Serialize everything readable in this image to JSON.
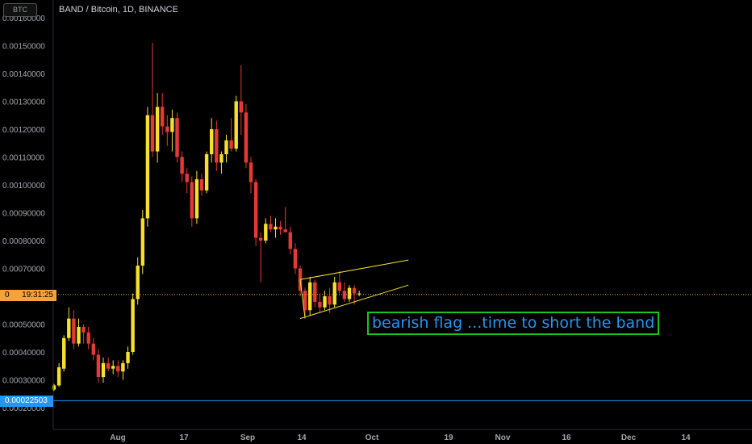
{
  "header": {
    "symbol_title": "BAND / Bitcoin, 1D, BINANCE",
    "currency_badge": "BTC"
  },
  "price_tags": {
    "countdown": "19:31:25",
    "current_price_label": "0",
    "horizontal_line_value": "0.00022503"
  },
  "annotation": {
    "text": "bearish flag ...time to short the band"
  },
  "colors": {
    "bull": "#f7e02d",
    "bear": "#e53935",
    "flag_lines": "#f7e02d",
    "horizontal_line": "#2196f3",
    "price_line": "#f7a23a",
    "annotation_border": "#1cc41c",
    "annotation_text": "#2196f3",
    "background": "#000000",
    "axis_text": "#a3a6af"
  },
  "chart_data": {
    "type": "candlestick",
    "ylim": [
      0.00014,
      0.00166
    ],
    "y_ticks": [
      "0.00020000",
      "0.00030000",
      "0.00040000",
      "0.00050000",
      "0.00060000",
      "0.00070000",
      "0.00080000",
      "0.00090000",
      "0.00100000",
      "0.00110000",
      "0.00120000",
      "0.00130000",
      "0.00140000",
      "0.00150000",
      "0.00160000"
    ],
    "x_ticks": [
      "Aug",
      "17",
      "Sep",
      "14",
      "Oct",
      "19",
      "Nov",
      "16",
      "Dec",
      "14"
    ],
    "candles": [
      [
        0.000265,
        0.000285,
        0.00026,
        0.00028
      ],
      [
        0.00028,
        0.00036,
        0.000275,
        0.000345
      ],
      [
        0.00034,
        0.00046,
        0.00033,
        0.00045
      ],
      [
        0.00045,
        0.00056,
        0.00044,
        0.00052
      ],
      [
        0.00052,
        0.00055,
        0.00041,
        0.00043
      ],
      [
        0.00043,
        0.00052,
        0.00042,
        0.00049
      ],
      [
        0.00049,
        0.0005,
        0.00043,
        0.00047
      ],
      [
        0.00047,
        0.00049,
        0.00041,
        0.00043
      ],
      [
        0.00043,
        0.00045,
        0.00037,
        0.00039
      ],
      [
        0.00039,
        0.00041,
        0.00029,
        0.00031
      ],
      [
        0.00031,
        0.00038,
        0.00029,
        0.00036
      ],
      [
        0.00036,
        0.00038,
        0.00033,
        0.00034
      ],
      [
        0.00034,
        0.00037,
        0.00032,
        0.00035
      ],
      [
        0.00035,
        0.00037,
        0.00031,
        0.00033
      ],
      [
        0.00033,
        0.00037,
        0.0003,
        0.00036
      ],
      [
        0.00036,
        0.00042,
        0.00034,
        0.0004
      ],
      [
        0.0004,
        0.00061,
        0.00039,
        0.00059
      ],
      [
        0.00059,
        0.00074,
        0.00057,
        0.00071
      ],
      [
        0.00071,
        0.00091,
        0.00068,
        0.00088
      ],
      [
        0.00088,
        0.00128,
        0.00085,
        0.00125
      ],
      [
        0.00125,
        0.00151,
        0.0011,
        0.00112
      ],
      [
        0.00112,
        0.00133,
        0.00108,
        0.00128
      ],
      [
        0.00128,
        0.00133,
        0.00118,
        0.00121
      ],
      [
        0.00121,
        0.00125,
        0.00114,
        0.00119
      ],
      [
        0.00119,
        0.00127,
        0.00112,
        0.00124
      ],
      [
        0.00124,
        0.00126,
        0.00108,
        0.0011
      ],
      [
        0.0011,
        0.00112,
        0.00101,
        0.00104
      ],
      [
        0.00104,
        0.00106,
        0.00097,
        0.00101
      ],
      [
        0.00101,
        0.00103,
        0.00085,
        0.00088
      ],
      [
        0.00088,
        0.00105,
        0.00086,
        0.00102
      ],
      [
        0.00102,
        0.00104,
        0.00096,
        0.00098
      ],
      [
        0.00098,
        0.00112,
        0.00097,
        0.00111
      ],
      [
        0.00111,
        0.00124,
        0.00108,
        0.0012
      ],
      [
        0.0012,
        0.00123,
        0.00105,
        0.00108
      ],
      [
        0.00108,
        0.00112,
        0.00104,
        0.00111
      ],
      [
        0.00111,
        0.00118,
        0.00108,
        0.00116
      ],
      [
        0.00116,
        0.00124,
        0.00112,
        0.00113
      ],
      [
        0.00113,
        0.00132,
        0.00112,
        0.0013
      ],
      [
        0.0013,
        0.00143,
        0.00118,
        0.00126
      ],
      [
        0.00126,
        0.00129,
        0.00106,
        0.00108
      ],
      [
        0.00108,
        0.0011,
        0.00097,
        0.00101
      ],
      [
        0.00101,
        0.00102,
        0.00078,
        0.00081
      ],
      [
        0.00081,
        0.00083,
        0.00065,
        0.0008
      ],
      [
        0.0008,
        0.00088,
        0.00079,
        0.00086
      ],
      [
        0.00086,
        0.00089,
        0.00083,
        0.00084
      ],
      [
        0.00084,
        0.00088,
        0.00081,
        0.00085
      ],
      [
        0.00085,
        0.00087,
        0.00082,
        0.00084
      ],
      [
        0.00084,
        0.00092,
        0.00083,
        0.00083
      ],
      [
        0.00083,
        0.00085,
        0.00075,
        0.00077
      ],
      [
        0.00077,
        0.00079,
        0.00068,
        0.0007
      ],
      [
        0.0007,
        0.00071,
        0.0006,
        0.00062
      ],
      [
        0.00062,
        0.00063,
        0.00053,
        0.00055
      ],
      [
        0.00055,
        0.00067,
        0.00053,
        0.00065
      ],
      [
        0.00065,
        0.00066,
        0.00056,
        0.00058
      ],
      [
        0.00058,
        0.00061,
        0.00054,
        0.00056
      ],
      [
        0.00056,
        0.00062,
        0.00055,
        0.0006
      ],
      [
        0.0006,
        0.00063,
        0.00054,
        0.00057
      ],
      [
        0.00057,
        0.00067,
        0.00056,
        0.00065
      ],
      [
        0.00065,
        0.00069,
        0.00061,
        0.00062
      ],
      [
        0.00062,
        0.00065,
        0.00058,
        0.00059
      ],
      [
        0.00059,
        0.00064,
        0.00058,
        0.00063
      ],
      [
        0.00063,
        0.00064,
        0.00057,
        0.00061
      ],
      [
        0.00061,
        0.00062,
        0.0006,
        0.00061
      ]
    ],
    "horizontal_line": 0.00022503,
    "current_price": 0.000606,
    "flag_lines": [
      {
        "role": "upper",
        "from": [
          50,
          0.00066
        ],
        "to": [
          72,
          0.00073
        ]
      },
      {
        "role": "lower",
        "from": [
          50,
          0.00052
        ],
        "to": [
          72,
          0.00064
        ]
      },
      {
        "role": "pole",
        "from": [
          50,
          0.00066
        ],
        "to": [
          51,
          0.00052
        ]
      }
    ]
  }
}
